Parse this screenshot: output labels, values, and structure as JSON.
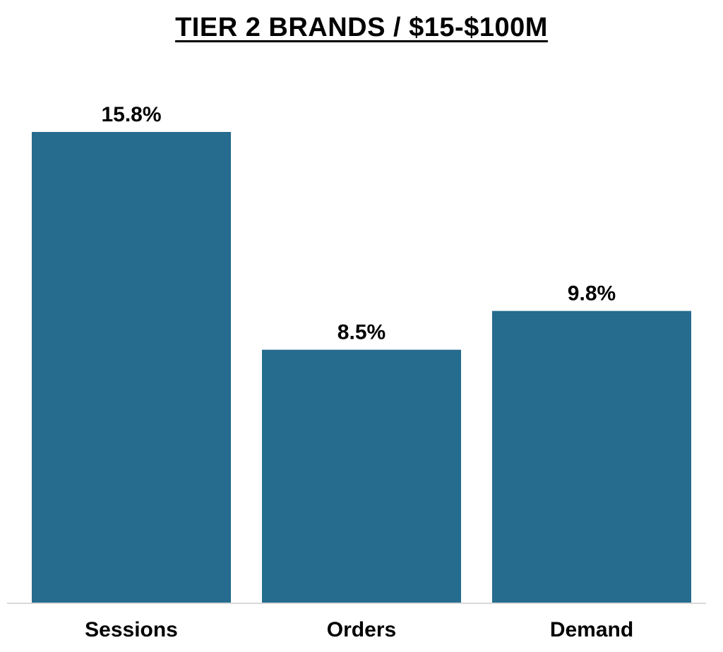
{
  "chart_data": {
    "type": "bar",
    "title": "TIER 2 BRANDS / $15-$100M",
    "categories": [
      "Sessions",
      "Orders",
      "Demand"
    ],
    "values": [
      15.8,
      8.5,
      9.8
    ],
    "value_labels": [
      "15.8%",
      "8.5%",
      "9.8%"
    ],
    "unit": "%",
    "xlabel": "",
    "ylabel": "",
    "ylim": [
      0,
      15.8
    ],
    "grid": false,
    "legend": "none",
    "bar_color": "#256C8E",
    "axis_color": "#D9D9D9"
  }
}
